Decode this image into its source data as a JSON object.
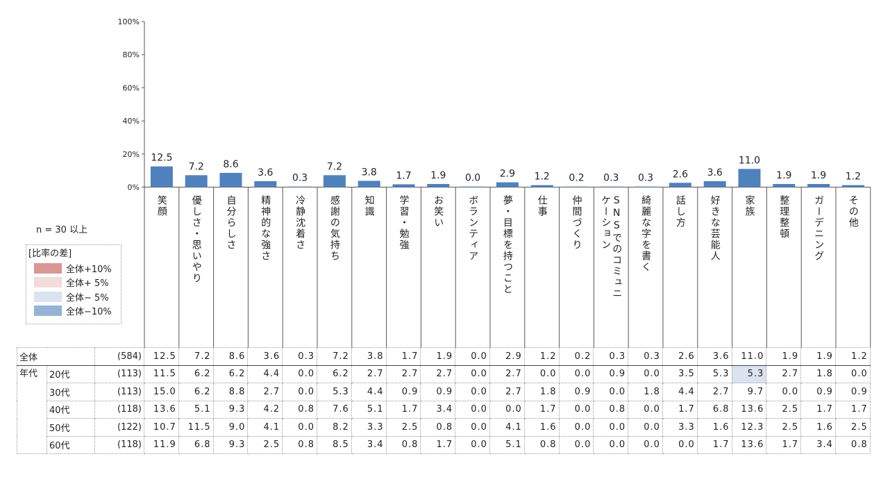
{
  "chart_data": {
    "type": "bar",
    "y_ticks": [
      "100%",
      "80%",
      "60%",
      "40%",
      "20%",
      "0%"
    ],
    "ylim": [
      0,
      100
    ],
    "categories": [
      "笑顔",
      "優しさ・思いやり",
      "自分らしさ",
      "精神的な強さ",
      "冷静沈着さ",
      "感謝の気持ち",
      "知識",
      "学習・勉強",
      "お笑い",
      "ボランティア",
      "夢・目標を持つこと",
      "仕事",
      "仲間づくり",
      "SNSでのコミュニケーション",
      "綺麗な字を書く",
      "話し方",
      "好きな芸能人",
      "家族",
      "整理整頓",
      "ガーデニング",
      "その他"
    ],
    "category_columns": [
      [
        "笑顔"
      ],
      [
        "優しさ・思いやり"
      ],
      [
        "自分らしさ"
      ],
      [
        "精神的な強さ"
      ],
      [
        "冷静沈着さ"
      ],
      [
        "感謝の気持ち"
      ],
      [
        "知識"
      ],
      [
        "学習・勉強"
      ],
      [
        "お笑い"
      ],
      [
        "ボランティア"
      ],
      [
        "夢・目標を持つこと"
      ],
      [
        "仕事"
      ],
      [
        "仲間づくり"
      ],
      [
        "ケーション",
        "SNSでのコミュニ"
      ],
      [
        "綺麗な字を書く"
      ],
      [
        "話し方"
      ],
      [
        "好きな芸能人"
      ],
      [
        "家族"
      ],
      [
        "整理整頓"
      ],
      [
        "ガーデニング"
      ],
      [
        "その他"
      ]
    ],
    "values": [
      12.5,
      7.2,
      8.6,
      3.6,
      0.3,
      7.2,
      3.8,
      1.7,
      1.9,
      0.0,
      2.9,
      1.2,
      0.2,
      0.3,
      0.3,
      2.6,
      3.6,
      11.0,
      1.9,
      1.9,
      1.2
    ],
    "value_labels": [
      "12.5",
      "7.2",
      "8.6",
      "3.6",
      "0.3",
      "7.2",
      "3.8",
      "1.7",
      "1.9",
      "0.0",
      "2.9",
      "1.2",
      "0.2",
      "0.3",
      "0.3",
      "2.6",
      "3.6",
      "11.0",
      "1.9",
      "1.9",
      "1.2"
    ],
    "bar_color": "#4f81bd",
    "grid": false
  },
  "n_label": "n = 30 以上",
  "legend": {
    "title": "[比率の差]",
    "items": [
      {
        "label": "全体+10%",
        "color": "#d99694"
      },
      {
        "label": "全体+ 5%",
        "color": "#f2dcdb"
      },
      {
        "label": "全体− 5%",
        "color": "#dce3f0"
      },
      {
        "label": "全体−10%",
        "color": "#95b3d7"
      }
    ]
  },
  "table": {
    "total": {
      "label": "全体",
      "base": "(584)",
      "values": [
        "12.5",
        "7.2",
        "8.6",
        "3.6",
        "0.3",
        "7.2",
        "3.8",
        "1.7",
        "1.9",
        "0.0",
        "2.9",
        "1.2",
        "0.2",
        "0.3",
        "0.3",
        "2.6",
        "3.6",
        "11.0",
        "1.9",
        "1.9",
        "1.2"
      ]
    },
    "group_label": "年代",
    "rows": [
      {
        "label": "20代",
        "base": "(113)",
        "values": [
          "11.5",
          "6.2",
          "6.2",
          "4.4",
          "0.0",
          "6.2",
          "2.7",
          "2.7",
          "2.7",
          "0.0",
          "2.7",
          "0.0",
          "0.0",
          "0.9",
          "0.0",
          "3.5",
          "5.3",
          "5.3",
          "2.7",
          "1.8",
          "0.0"
        ]
      },
      {
        "label": "30代",
        "base": "(113)",
        "values": [
          "15.0",
          "6.2",
          "8.8",
          "2.7",
          "0.0",
          "5.3",
          "4.4",
          "0.9",
          "0.9",
          "0.0",
          "2.7",
          "1.8",
          "0.9",
          "0.0",
          "1.8",
          "4.4",
          "2.7",
          "9.7",
          "0.0",
          "0.9",
          "0.9"
        ]
      },
      {
        "label": "40代",
        "base": "(118)",
        "values": [
          "13.6",
          "5.1",
          "9.3",
          "4.2",
          "0.8",
          "7.6",
          "5.1",
          "1.7",
          "3.4",
          "0.0",
          "0.0",
          "1.7",
          "0.0",
          "0.8",
          "0.0",
          "1.7",
          "6.8",
          "13.6",
          "2.5",
          "1.7",
          "1.7"
        ]
      },
      {
        "label": "50代",
        "base": "(122)",
        "values": [
          "10.7",
          "11.5",
          "9.0",
          "4.1",
          "0.0",
          "8.2",
          "3.3",
          "2.5",
          "0.8",
          "0.0",
          "4.1",
          "1.6",
          "0.0",
          "0.0",
          "0.0",
          "3.3",
          "1.6",
          "12.3",
          "2.5",
          "1.6",
          "2.5"
        ]
      },
      {
        "label": "60代",
        "base": "(118)",
        "values": [
          "11.9",
          "6.8",
          "9.3",
          "2.5",
          "0.8",
          "8.5",
          "3.4",
          "0.8",
          "1.7",
          "0.0",
          "5.1",
          "0.8",
          "0.0",
          "0.0",
          "0.0",
          "0.0",
          "1.7",
          "13.6",
          "1.7",
          "3.4",
          "0.8"
        ]
      }
    ],
    "highlights": [
      {
        "row": 0,
        "col": 17,
        "level": "−5%"
      }
    ]
  }
}
